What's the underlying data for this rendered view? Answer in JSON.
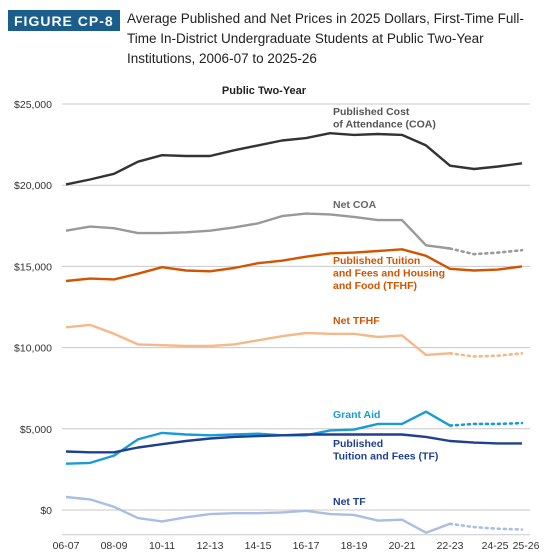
{
  "figure": {
    "badge": "FIGURE CP-8",
    "title": "Average Published and Net Prices in 2025 Dollars, First-Time Full-Time In-District Undergraduate Students at Public Two-Year Institutions, 2006-07 to 2025-26"
  },
  "chart_data": {
    "type": "line",
    "title": "Public Two-Year",
    "x": [
      "2006-07",
      "2007-08",
      "2008-09",
      "2009-10",
      "2010-11",
      "2011-12",
      "2012-13",
      "2013-14",
      "2014-15",
      "2015-16",
      "2016-17",
      "2017-18",
      "2018-19",
      "2019-20",
      "2020-21",
      "2021-22",
      "2022-23",
      "2023-24",
      "2024-25",
      "2025-26"
    ],
    "x_tick_labels": [
      "06-07",
      "08-09",
      "10-11",
      "12-13",
      "14-15",
      "16-17",
      "18-19",
      "20-21",
      "22-23",
      "24-25",
      "25-26"
    ],
    "x_tick_indices": [
      0,
      2,
      4,
      6,
      8,
      10,
      12,
      14,
      16,
      18,
      19
    ],
    "y_tick_labels": [
      "$0",
      "$5,000",
      "$10,000",
      "$15,000",
      "$20,000",
      "$25,000"
    ],
    "y_tick_values": [
      0,
      5000,
      10000,
      15000,
      20000,
      25000
    ],
    "ylim": [
      -1400,
      25000
    ],
    "grid": true,
    "series": [
      {
        "name": "Published Cost of Attendance (COA)",
        "label_lines": [
          "Published Cost",
          "of Attendance (COA)"
        ],
        "color": "#333333",
        "values": [
          20050,
          20350,
          20700,
          21450,
          21850,
          21800,
          21800,
          22150,
          22450,
          22750,
          22900,
          23200,
          23100,
          23150,
          23100,
          22450,
          21200,
          21000,
          21150,
          21350
        ],
        "estimated_from": null
      },
      {
        "name": "Net COA",
        "label_lines": [
          "Net COA"
        ],
        "color": "#999999",
        "values": [
          17200,
          17450,
          17350,
          17050,
          17050,
          17100,
          17200,
          17400,
          17650,
          18100,
          18250,
          18200,
          18050,
          17850,
          17850,
          16300,
          16100,
          15750,
          15850,
          16000
        ],
        "estimated_from": 16
      },
      {
        "name": "Published Tuition and Fees and Housing and Food (TFHF)",
        "label_lines": [
          "Published Tuition",
          "and Fees and Housing",
          "and Food (TFHF)"
        ],
        "color": "#d35400",
        "values": [
          14100,
          14250,
          14200,
          14550,
          14950,
          14750,
          14700,
          14900,
          15200,
          15350,
          15600,
          15800,
          15850,
          15950,
          16050,
          15650,
          14850,
          14750,
          14800,
          15000
        ],
        "estimated_from": null
      },
      {
        "name": "Net TFHF",
        "label_lines": [
          "Net TFHF"
        ],
        "color": "#f5b88a",
        "values": [
          11250,
          11400,
          10850,
          10200,
          10150,
          10100,
          10100,
          10200,
          10450,
          10700,
          10900,
          10850,
          10850,
          10650,
          10750,
          9550,
          9650,
          9450,
          9500,
          9650
        ],
        "estimated_from": 16
      },
      {
        "name": "Grant Aid",
        "label_lines": [
          "Grant Aid"
        ],
        "color": "#1a9bd7",
        "values": [
          2850,
          2900,
          3350,
          4350,
          4750,
          4650,
          4600,
          4650,
          4700,
          4600,
          4600,
          4900,
          4950,
          5300,
          5300,
          6050,
          5200,
          5300,
          5300,
          5350
        ],
        "estimated_from": 16
      },
      {
        "name": "Published Tuition and Fees (TF)",
        "label_lines": [
          "Published",
          "Tuition and Fees (TF)"
        ],
        "color": "#1f3f8f",
        "values": [
          3600,
          3550,
          3550,
          3850,
          4050,
          4250,
          4400,
          4500,
          4550,
          4600,
          4650,
          4650,
          4650,
          4650,
          4650,
          4500,
          4250,
          4150,
          4100,
          4100
        ],
        "estimated_from": null
      },
      {
        "name": "Net TF",
        "label_lines": [
          "Net TF"
        ],
        "color": "#a9bee0",
        "values": [
          800,
          650,
          200,
          -500,
          -700,
          -450,
          -250,
          -200,
          -200,
          -150,
          -50,
          -250,
          -300,
          -650,
          -600,
          -1400,
          -850,
          -1050,
          -1150,
          -1200
        ],
        "estimated_from": 16
      }
    ]
  }
}
